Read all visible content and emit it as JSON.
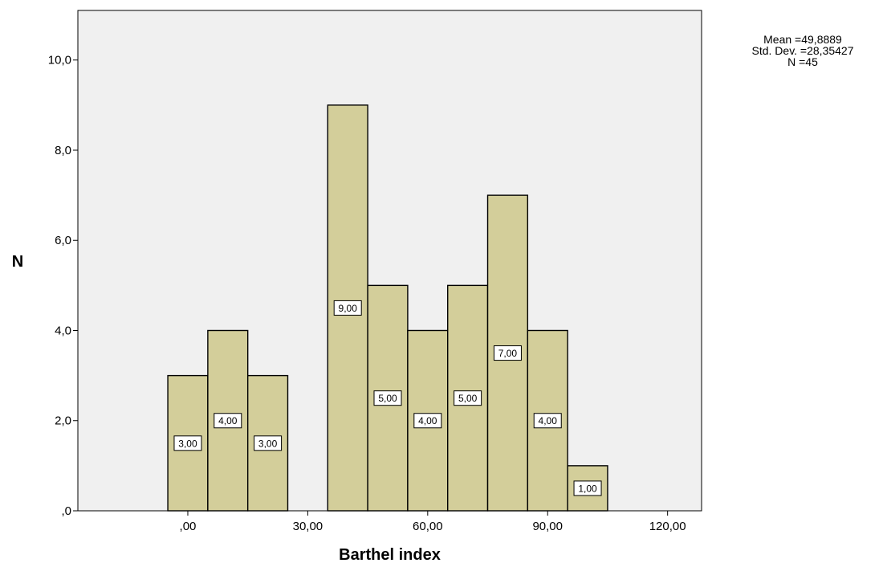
{
  "chart_data": {
    "type": "bar",
    "xlabel": "Barthel index",
    "ylabel": "N",
    "x_ticks": [
      ",00",
      "30,00",
      "60,00",
      "90,00",
      "120,00"
    ],
    "x_tick_values": [
      0,
      30,
      60,
      90,
      120
    ],
    "y_ticks": [
      ",0",
      "2,0",
      "4,0",
      "6,0",
      "8,0",
      "10,0"
    ],
    "y_tick_values": [
      0,
      2,
      4,
      6,
      8,
      10
    ],
    "xlim": [
      -27.5,
      128.5
    ],
    "ylim": [
      0,
      11.1
    ],
    "bin_width": 10,
    "bins": [
      {
        "center": 0,
        "value": 3,
        "label": "3,00"
      },
      {
        "center": 10,
        "value": 4,
        "label": "4,00"
      },
      {
        "center": 20,
        "value": 3,
        "label": "3,00"
      },
      {
        "center": 40,
        "value": 9,
        "label": "9,00"
      },
      {
        "center": 50,
        "value": 5,
        "label": "5,00"
      },
      {
        "center": 60,
        "value": 4,
        "label": "4,00"
      },
      {
        "center": 70,
        "value": 5,
        "label": "5,00"
      },
      {
        "center": 80,
        "value": 7,
        "label": "7,00"
      },
      {
        "center": 90,
        "value": 4,
        "label": "4,00"
      },
      {
        "center": 100,
        "value": 1,
        "label": "1,00"
      }
    ],
    "stats": {
      "mean": "Mean =49,8889",
      "std": "Std. Dev. =28,35427",
      "n": "N =45"
    },
    "colors": {
      "plot_bg": "#f0f0f0",
      "bar_fill": "#d3ce9a",
      "bar_stroke": "#000000"
    },
    "grid": false
  }
}
